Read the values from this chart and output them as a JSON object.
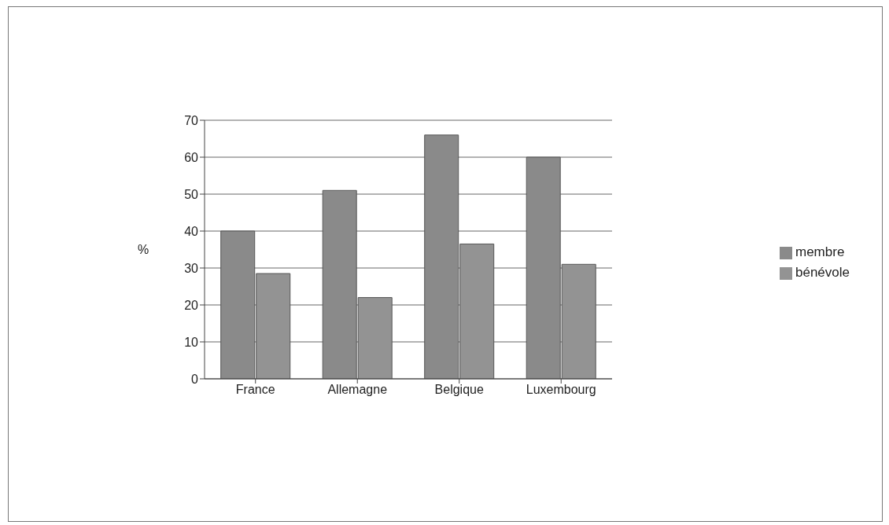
{
  "chart_data": {
    "type": "bar",
    "ylabel": "%",
    "categories": [
      "France",
      "Allemagne",
      "Belgique",
      "Luxembourg"
    ],
    "series": [
      {
        "name": "membre",
        "color": "#8a8a8a",
        "values": [
          40,
          51,
          66,
          60
        ]
      },
      {
        "name": "bénévole",
        "color": "#939393",
        "values": [
          28.5,
          22,
          36.5,
          31
        ]
      }
    ],
    "ylim": [
      0,
      70
    ],
    "yticks": [
      0,
      10,
      20,
      30,
      40,
      50,
      60,
      70
    ],
    "grid": "y",
    "legend": "right"
  }
}
